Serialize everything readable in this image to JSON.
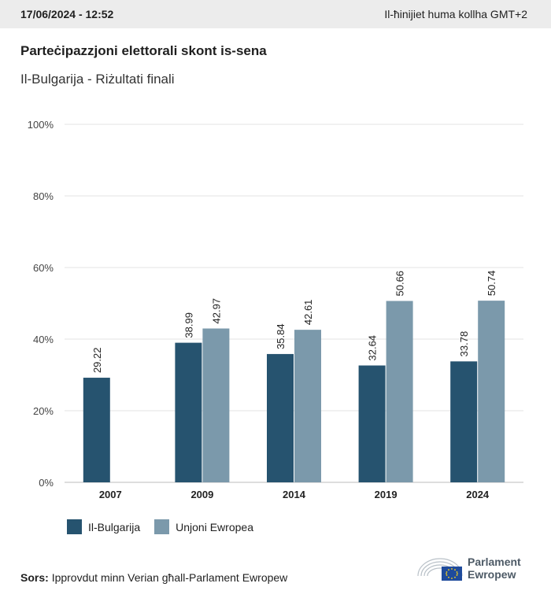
{
  "header": {
    "date": "17/06/2024 - 12:52",
    "timezone": "Il-ħinijiet huma kollha GMT+2"
  },
  "title": "Parteċipazzjoni elettorali skont is-sena",
  "subtitle": "Il-Bulgarija - Riżultati finali",
  "legend": [
    {
      "label": "Il-Bulgarija",
      "color": "#26536f"
    },
    {
      "label": "Unjoni Ewropea",
      "color": "#7b99ab"
    }
  ],
  "source": {
    "label": "Sors:",
    "text": "Ipprovdut minn Verian għall-Parlament Ewropew"
  },
  "logo": {
    "line1": "Parlament",
    "line2": "Ewropew"
  },
  "chart_data": {
    "type": "bar",
    "categories": [
      "2007",
      "2009",
      "2014",
      "2019",
      "2024"
    ],
    "series": [
      {
        "name": "Il-Bulgarija",
        "values": [
          29.22,
          38.99,
          35.84,
          32.64,
          33.78
        ],
        "color": "#26536f"
      },
      {
        "name": "Unjoni Ewropea",
        "values": [
          null,
          42.97,
          42.61,
          50.66,
          50.74
        ],
        "color": "#7b99ab"
      }
    ],
    "yticks": [
      "0%",
      "20%",
      "40%",
      "60%",
      "80%",
      "100%"
    ],
    "ylim": [
      0,
      100
    ],
    "grid": true
  }
}
